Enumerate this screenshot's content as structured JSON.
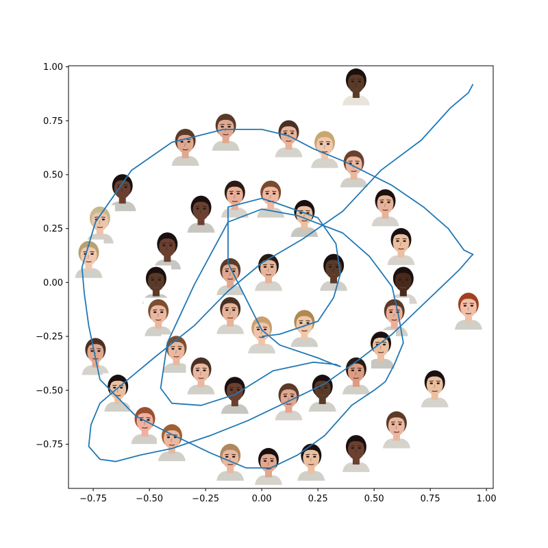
{
  "chart_data": {
    "type": "line",
    "title": "",
    "xlabel": "",
    "ylabel": "",
    "xlim": [
      -0.86,
      1.03
    ],
    "ylim": [
      -0.955,
      1.005
    ],
    "grid": false,
    "legend": "none",
    "x_ticks": [
      {
        "value": -0.75,
        "label": "−0.75"
      },
      {
        "value": -0.5,
        "label": "−0.50"
      },
      {
        "value": -0.25,
        "label": "−0.25"
      },
      {
        "value": 0.0,
        "label": "0.00"
      },
      {
        "value": 0.25,
        "label": "0.25"
      },
      {
        "value": 0.5,
        "label": "0.50"
      },
      {
        "value": 0.75,
        "label": "0.75"
      },
      {
        "value": 1.0,
        "label": "1.00"
      }
    ],
    "y_ticks": [
      {
        "value": -0.75,
        "label": "−0.75"
      },
      {
        "value": -0.5,
        "label": "−0.50"
      },
      {
        "value": -0.25,
        "label": "−0.25"
      },
      {
        "value": 0.0,
        "label": "0.00"
      },
      {
        "value": 0.25,
        "label": "0.25"
      },
      {
        "value": 0.5,
        "label": "0.50"
      },
      {
        "value": 0.75,
        "label": "0.75"
      },
      {
        "value": 1.0,
        "label": "1.00"
      }
    ],
    "series": [
      {
        "line_color": "#1f77b4",
        "x": [
          0.0,
          0.08,
          0.25,
          0.32,
          0.35,
          0.33,
          0.25,
          0.06,
          0.0,
          -0.15,
          -0.15,
          -0.15,
          0.0,
          0.08,
          0.25,
          0.32,
          0.35,
          0.33,
          0.23,
          0.05,
          -0.12,
          -0.27,
          -0.4,
          -0.45,
          -0.42,
          -0.3,
          -0.15,
          0.0,
          0.16,
          0.36,
          0.48,
          0.58,
          0.61,
          0.63,
          0.59,
          0.55,
          0.5,
          0.4,
          0.28,
          0.16,
          0.04,
          -0.07,
          -0.23,
          -0.41,
          -0.56,
          -0.72,
          -0.77,
          -0.79,
          -0.8,
          -0.74,
          -0.58,
          -0.4,
          -0.17,
          0.0,
          0.12,
          0.23,
          0.37,
          0.58,
          0.72,
          0.83,
          0.9,
          0.94,
          0.93,
          0.88,
          0.8,
          0.7,
          0.58,
          0.43,
          0.28,
          0.1,
          -0.06,
          -0.23,
          -0.4,
          -0.54,
          -0.65,
          -0.72,
          -0.77,
          -0.76,
          -0.72,
          -0.63,
          -0.48,
          -0.3,
          -0.15,
          0.0,
          0.18,
          0.36,
          0.53,
          0.71,
          0.84,
          0.92,
          0.94
        ],
        "y": [
          -0.25,
          -0.24,
          -0.18,
          -0.07,
          0.04,
          0.18,
          0.3,
          0.37,
          0.39,
          0.35,
          0.3,
          0.09,
          -0.22,
          -0.29,
          -0.35,
          -0.38,
          -0.39,
          -0.38,
          -0.37,
          -0.41,
          -0.52,
          -0.57,
          -0.56,
          -0.49,
          -0.28,
          -0.01,
          0.28,
          0.34,
          0.31,
          0.23,
          0.12,
          -0.02,
          -0.16,
          -0.28,
          -0.38,
          -0.46,
          -0.5,
          -0.57,
          -0.71,
          -0.8,
          -0.86,
          -0.86,
          -0.79,
          -0.7,
          -0.62,
          -0.45,
          -0.2,
          -0.05,
          0.07,
          0.28,
          0.52,
          0.65,
          0.71,
          0.71,
          0.68,
          0.62,
          0.56,
          0.45,
          0.35,
          0.25,
          0.15,
          0.13,
          0.12,
          0.06,
          -0.02,
          -0.12,
          -0.24,
          -0.36,
          -0.47,
          -0.56,
          -0.64,
          -0.71,
          -0.77,
          -0.8,
          -0.83,
          -0.82,
          -0.76,
          -0.66,
          -0.56,
          -0.48,
          -0.35,
          -0.2,
          -0.04,
          0.09,
          0.2,
          0.33,
          0.52,
          0.66,
          0.81,
          0.88,
          0.92
        ]
      }
    ],
    "faces": [
      {
        "x": 0.42,
        "y": 0.91,
        "skin": "#5a3a28",
        "hair": "#1a1010",
        "shirt": "#e8e4dc"
      },
      {
        "x": -0.16,
        "y": 0.7,
        "skin": "#e0a890",
        "hair": "#5a3a28",
        "shirt": "#d0cfc8"
      },
      {
        "x": 0.12,
        "y": 0.67,
        "skin": "#e6b49a",
        "hair": "#4a3024",
        "shirt": "#d6d3cc"
      },
      {
        "x": -0.34,
        "y": 0.63,
        "skin": "#e0a890",
        "hair": "#5a3a28",
        "shirt": "#d0cfc8"
      },
      {
        "x": 0.28,
        "y": 0.62,
        "skin": "#f0c8b0",
        "hair": "#c8a870",
        "shirt": "#d6d3cc"
      },
      {
        "x": 0.41,
        "y": 0.53,
        "skin": "#eab8a0",
        "hair": "#6a4030",
        "shirt": "#d0cfc8"
      },
      {
        "x": -0.62,
        "y": 0.42,
        "skin": "#6a4030",
        "hair": "#1a1010",
        "shirt": "#c8c6c0"
      },
      {
        "x": -0.12,
        "y": 0.39,
        "skin": "#eab098",
        "hair": "#2a1a14",
        "shirt": "#d6d3cc"
      },
      {
        "x": 0.04,
        "y": 0.39,
        "skin": "#f0b8a0",
        "hair": "#7a4a30",
        "shirt": "#d0cfc8"
      },
      {
        "x": -0.27,
        "y": 0.32,
        "skin": "#6a4030",
        "hair": "#1a1010",
        "shirt": "#c8c6c0"
      },
      {
        "x": 0.19,
        "y": 0.3,
        "skin": "#eac0a0",
        "hair": "#1a1010",
        "shirt": "#c8c6c0"
      },
      {
        "x": 0.55,
        "y": 0.35,
        "skin": "#e6b49a",
        "hair": "#1a1010",
        "shirt": "#d6d3cc"
      },
      {
        "x": -0.72,
        "y": 0.27,
        "skin": "#ecc4ac",
        "hair": "#c8b890",
        "shirt": "#d0cfc8"
      },
      {
        "x": -0.42,
        "y": 0.15,
        "skin": "#6a4030",
        "hair": "#1a1010",
        "shirt": "#c8c6c0"
      },
      {
        "x": 0.62,
        "y": 0.17,
        "skin": "#eac0a0",
        "hair": "#1a1010",
        "shirt": "#d6d3cc"
      },
      {
        "x": -0.77,
        "y": 0.11,
        "skin": "#f0c8b0",
        "hair": "#b8a070",
        "shirt": "#d0cfc8"
      },
      {
        "x": 0.03,
        "y": 0.05,
        "skin": "#e6b49a",
        "hair": "#2a1a14",
        "shirt": "#d6d3cc"
      },
      {
        "x": -0.14,
        "y": 0.03,
        "skin": "#e0a890",
        "hair": "#5a3a28",
        "shirt": "#d0cfc8"
      },
      {
        "x": 0.32,
        "y": 0.05,
        "skin": "#5a3a28",
        "hair": "#1a1010",
        "shirt": "#d0cfc8"
      },
      {
        "x": -0.47,
        "y": -0.01,
        "skin": "#5a3a28",
        "hair": "#1a1010",
        "shirt": "#c8c6c0"
      },
      {
        "x": 0.63,
        "y": -0.01,
        "skin": "#4a2a1c",
        "hair": "#1a1010",
        "shirt": "#d6d3cc"
      },
      {
        "x": 0.92,
        "y": -0.13,
        "skin": "#f0c0a8",
        "hair": "#a04020",
        "shirt": "#d0cfc8"
      },
      {
        "x": -0.46,
        "y": -0.16,
        "skin": "#eab8a0",
        "hair": "#7a5030",
        "shirt": "#d0cfc8"
      },
      {
        "x": -0.14,
        "y": -0.15,
        "skin": "#e6b49a",
        "hair": "#4a3024",
        "shirt": "#d6d3cc"
      },
      {
        "x": 0.59,
        "y": -0.16,
        "skin": "#eab098",
        "hair": "#5a3a28",
        "shirt": "#d0cfc8"
      },
      {
        "x": 0.0,
        "y": -0.24,
        "skin": "#f0c4ac",
        "hair": "#c8a070",
        "shirt": "#d6d3cc"
      },
      {
        "x": 0.19,
        "y": -0.21,
        "skin": "#f0c8a8",
        "hair": "#b08850",
        "shirt": "#d0cfc8"
      },
      {
        "x": -0.38,
        "y": -0.33,
        "skin": "#eab8a0",
        "hair": "#7a5030",
        "shirt": "#d0cfc8"
      },
      {
        "x": 0.53,
        "y": -0.31,
        "skin": "#eac0a0",
        "hair": "#1a1010",
        "shirt": "#c8c6c0"
      },
      {
        "x": -0.74,
        "y": -0.34,
        "skin": "#e0a890",
        "hair": "#4a3024",
        "shirt": "#d6d3cc"
      },
      {
        "x": 0.42,
        "y": -0.43,
        "skin": "#dc9c84",
        "hair": "#2a1a14",
        "shirt": "#d0cfc8"
      },
      {
        "x": -0.27,
        "y": -0.43,
        "skin": "#eab8a0",
        "hair": "#4a3024",
        "shirt": "#d0cfc8"
      },
      {
        "x": -0.12,
        "y": -0.52,
        "skin": "#6a4030",
        "hair": "#1a1010",
        "shirt": "#c8c6c0"
      },
      {
        "x": 0.27,
        "y": -0.51,
        "skin": "#5a3a28",
        "hair": "#1a1010",
        "shirt": "#d0cfc8"
      },
      {
        "x": 0.12,
        "y": -0.55,
        "skin": "#e0a890",
        "hair": "#5a3a28",
        "shirt": "#d6d3cc"
      },
      {
        "x": -0.64,
        "y": -0.51,
        "skin": "#eac0a0",
        "hair": "#1a1010",
        "shirt": "#d0cfc8"
      },
      {
        "x": 0.77,
        "y": -0.49,
        "skin": "#eac0a0",
        "hair": "#1a1010",
        "shirt": "#d6d3cc"
      },
      {
        "x": -0.52,
        "y": -0.66,
        "skin": "#f0b0a0",
        "hair": "#9a5030",
        "shirt": "#d0cfc8"
      },
      {
        "x": 0.6,
        "y": -0.68,
        "skin": "#eab8a0",
        "hair": "#5a3a28",
        "shirt": "#d6d3cc"
      },
      {
        "x": -0.4,
        "y": -0.74,
        "skin": "#eab8a0",
        "hair": "#a06030",
        "shirt": "#d0cfc8"
      },
      {
        "x": 0.42,
        "y": -0.79,
        "skin": "#6a4030",
        "hair": "#1a1010",
        "shirt": "#d6d3cc"
      },
      {
        "x": -0.14,
        "y": -0.83,
        "skin": "#eab8a0",
        "hair": "#b08860",
        "shirt": "#d0cfc8"
      },
      {
        "x": 0.03,
        "y": -0.85,
        "skin": "#e0a890",
        "hair": "#1a1010",
        "shirt": "#d6d3cc"
      },
      {
        "x": 0.22,
        "y": -0.83,
        "skin": "#eac0a0",
        "hair": "#1a1010",
        "shirt": "#d0cfc8"
      }
    ]
  }
}
